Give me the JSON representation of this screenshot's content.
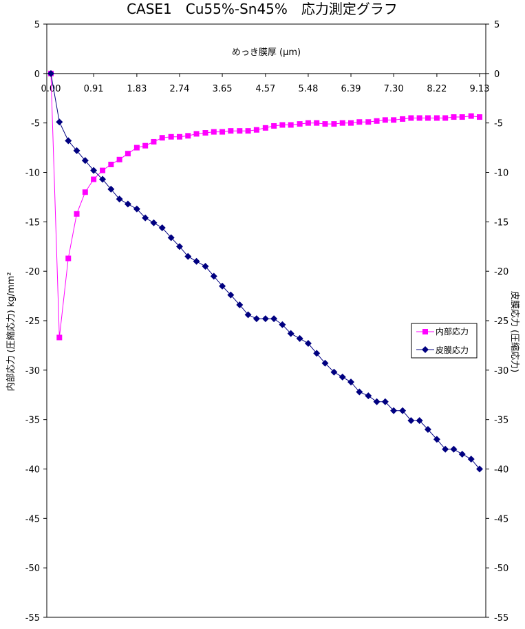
{
  "chart_data": {
    "type": "line",
    "title": "CASE1　Cu55%-Sn45%　応力測定グラフ",
    "xlabel": "めっき膜厚 (μm)",
    "ylabel": "内部応力 (圧縮応力) kg/mm²",
    "y2label": "皮膜応力 (圧縮応力)",
    "xlim": [
      0,
      9.13
    ],
    "ylim": [
      -55,
      5
    ],
    "xticks": [
      "0.00",
      "0.91",
      "1.83",
      "2.74",
      "3.65",
      "4.57",
      "5.48",
      "6.39",
      "7.30",
      "8.22",
      "9.13"
    ],
    "yticks": [
      "5",
      "0",
      "-5",
      "-10",
      "-15",
      "-20",
      "-25",
      "-30",
      "-35",
      "-40",
      "-45",
      "-50",
      "-55"
    ],
    "grid": false,
    "legend_position": "right",
    "series": [
      {
        "name": "内部応力",
        "color": "#FF00FF",
        "marker": "square",
        "x": [
          0.0,
          0.18,
          0.37,
          0.55,
          0.73,
          0.91,
          1.1,
          1.28,
          1.46,
          1.64,
          1.83,
          2.01,
          2.19,
          2.37,
          2.56,
          2.74,
          2.92,
          3.1,
          3.29,
          3.47,
          3.65,
          3.83,
          4.02,
          4.2,
          4.38,
          4.57,
          4.75,
          4.93,
          5.11,
          5.3,
          5.48,
          5.66,
          5.84,
          6.03,
          6.21,
          6.39,
          6.57,
          6.76,
          6.94,
          7.12,
          7.3,
          7.49,
          7.67,
          7.85,
          8.03,
          8.22,
          8.4,
          8.58,
          8.76,
          8.95,
          9.13
        ],
        "y": [
          0.0,
          -26.7,
          -18.7,
          -14.2,
          -12.0,
          -10.7,
          -9.8,
          -9.2,
          -8.7,
          -8.1,
          -7.5,
          -7.3,
          -6.9,
          -6.5,
          -6.4,
          -6.4,
          -6.3,
          -6.1,
          -6.0,
          -5.9,
          -5.9,
          -5.8,
          -5.8,
          -5.8,
          -5.7,
          -5.5,
          -5.3,
          -5.2,
          -5.2,
          -5.1,
          -5.0,
          -5.0,
          -5.1,
          -5.1,
          -5.0,
          -5.0,
          -4.9,
          -4.9,
          -4.8,
          -4.7,
          -4.7,
          -4.6,
          -4.5,
          -4.5,
          -4.5,
          -4.5,
          -4.5,
          -4.4,
          -4.4,
          -4.3,
          -4.4
        ]
      },
      {
        "name": "皮膜応力",
        "color": "#000080",
        "marker": "diamond",
        "x": [
          0.0,
          0.18,
          0.37,
          0.55,
          0.73,
          0.91,
          1.1,
          1.28,
          1.46,
          1.64,
          1.83,
          2.01,
          2.19,
          2.37,
          2.56,
          2.74,
          2.92,
          3.1,
          3.29,
          3.47,
          3.65,
          3.83,
          4.02,
          4.2,
          4.38,
          4.57,
          4.75,
          4.93,
          5.11,
          5.3,
          5.48,
          5.66,
          5.84,
          6.03,
          6.21,
          6.39,
          6.57,
          6.76,
          6.94,
          7.12,
          7.3,
          7.49,
          7.67,
          7.85,
          8.03,
          8.22,
          8.4,
          8.58,
          8.76,
          8.95,
          9.13
        ],
        "y": [
          0.0,
          -4.9,
          -6.8,
          -7.8,
          -8.8,
          -9.8,
          -10.7,
          -11.7,
          -12.7,
          -13.2,
          -13.7,
          -14.6,
          -15.1,
          -15.6,
          -16.6,
          -17.5,
          -18.5,
          -19.0,
          -19.5,
          -20.5,
          -21.5,
          -22.4,
          -23.4,
          -24.4,
          -24.8,
          -24.8,
          -24.8,
          -25.4,
          -26.3,
          -26.8,
          -27.3,
          -28.3,
          -29.3,
          -30.2,
          -30.7,
          -31.2,
          -32.2,
          -32.6,
          -33.2,
          -33.2,
          -34.1,
          -34.1,
          -35.1,
          -35.1,
          -36.0,
          -37.0,
          -38.0,
          -38.0,
          -38.5,
          -39.0,
          -40.0
        ]
      }
    ]
  }
}
